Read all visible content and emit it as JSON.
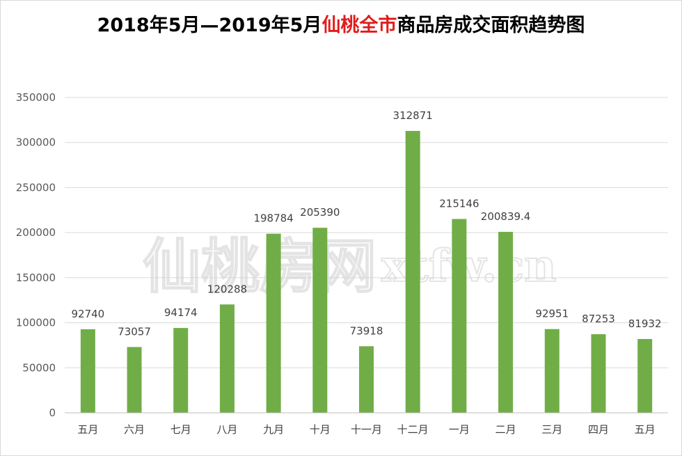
{
  "title": {
    "part1": "2018年5月—2019年5月",
    "highlight": "仙桃全市",
    "part2": "商品房成交面积趋势图"
  },
  "watermark": {
    "cn": "仙桃房网",
    "en": "xtfw.cn"
  },
  "colors": {
    "bar": "#70ad47",
    "title_highlight": "#e21b1b",
    "grid": "#d9d9d9"
  },
  "chart_data": {
    "type": "bar",
    "categories": [
      "五月",
      "六月",
      "七月",
      "八月",
      "九月",
      "十月",
      "十一月",
      "十二月",
      "一月",
      "二月",
      "三月",
      "四月",
      "五月"
    ],
    "values": [
      92740,
      73057,
      94174,
      120288,
      198784,
      205390,
      73918,
      312871,
      215146,
      200839.4,
      92951,
      87253,
      81932
    ],
    "value_labels": [
      "92740",
      "73057",
      "94174",
      "120288",
      "198784",
      "205390",
      "73918",
      "312871",
      "215146",
      "200839.4",
      "92951",
      "87253",
      "81932"
    ],
    "ylim": [
      0,
      350000
    ],
    "yticks": [
      0,
      50000,
      100000,
      150000,
      200000,
      250000,
      300000,
      350000
    ],
    "ytick_labels": [
      "0",
      "50000",
      "100000",
      "150000",
      "200000",
      "250000",
      "300000",
      "350000"
    ],
    "grid": true,
    "legend": "none"
  }
}
